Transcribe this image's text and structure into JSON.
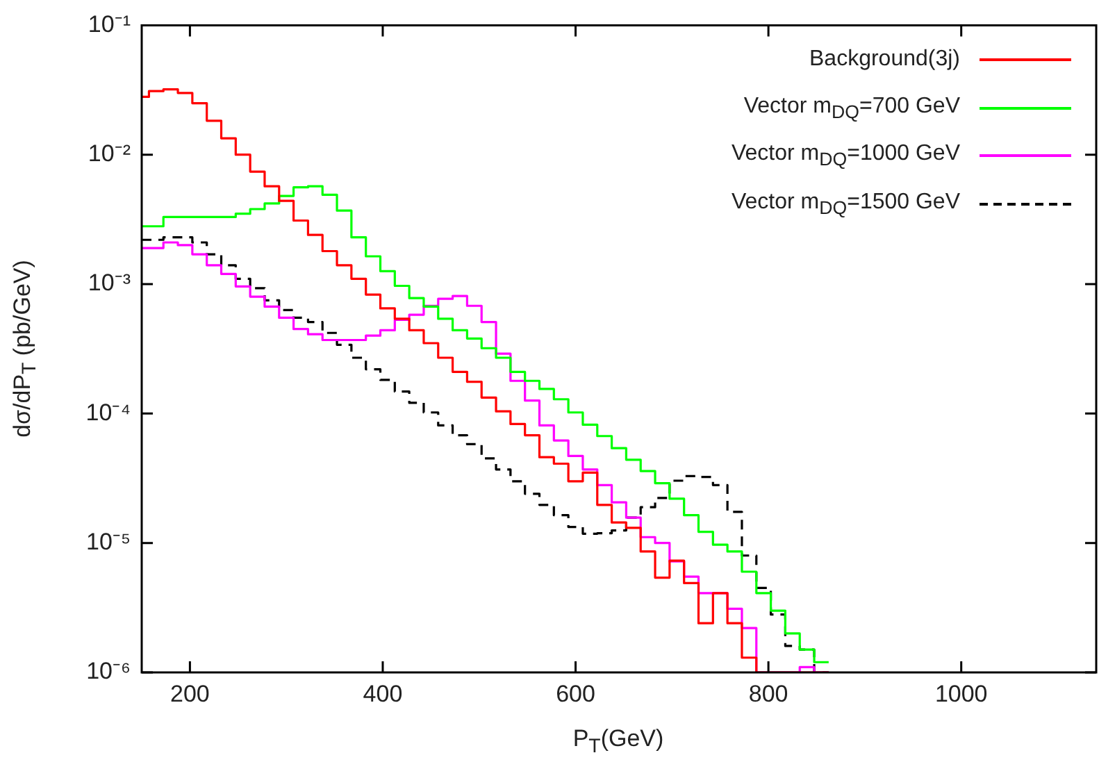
{
  "chart_data": {
    "type": "histogram",
    "xlabel": "P$_{T}$(GeV)",
    "ylabel": "dσ/dP$_{T}$ (pb/GeV)",
    "bins": [
      150,
      157.5,
      172.5,
      187.5,
      202.5,
      217.5,
      232.5,
      247.5,
      262.5,
      277.5,
      292.5,
      307.5,
      322.5,
      337.5,
      352.5,
      367.5,
      382.5,
      397.5,
      412.5,
      427.5,
      442.5,
      457.5,
      472.5,
      487.5,
      502.5,
      517.5,
      532.5,
      547.5,
      562.5,
      577.5,
      592.5,
      607.5,
      622.5,
      637.5,
      652.5,
      667.5,
      682.5,
      697.5,
      712.5,
      727.5,
      742.5,
      757.5,
      772.5,
      787.5,
      802.5,
      817.5,
      832.5,
      847.5,
      862.5
    ],
    "series": [
      {
        "name": "Background(3j)",
        "color": "#ff0000",
        "values": [
          0.028,
          0.031,
          0.032,
          0.03,
          0.025,
          0.0183,
          0.0134,
          0.01,
          0.0074,
          0.0057,
          0.0044,
          0.0031,
          0.0024,
          0.0018,
          0.0014,
          0.0011,
          0.00083,
          0.00065,
          0.00054,
          0.00044,
          0.00035,
          0.00027,
          0.00021,
          0.000176,
          0.000133,
          0.000104,
          8.3e-05,
          6.8e-05,
          4.6e-05,
          4.1e-05,
          3e-05,
          3.5e-05,
          1.97e-05,
          1.44e-05,
          1.31e-05,
          8.6e-06,
          5.4e-06,
          7.3e-06,
          4.9e-06,
          2.4e-06,
          4.1e-06,
          2.4e-06,
          1.3e-06,
          null,
          null,
          null,
          null,
          null
        ]
      },
      {
        "name": "Vector m$_{DQ}$=700 GeV",
        "color": "#00ff00",
        "values": [
          0.0028,
          0.0028,
          0.0033,
          0.0033,
          0.0033,
          0.0033,
          0.0033,
          0.0035,
          0.0038,
          0.0042,
          0.0048,
          0.0056,
          0.0057,
          0.0049,
          0.0037,
          0.0023,
          0.00164,
          0.00126,
          0.00097,
          0.00078,
          0.00067,
          0.00054,
          0.00044,
          0.00038,
          0.00032,
          0.00027,
          0.00021,
          0.000179,
          0.000155,
          0.000129,
          0.000102,
          8.2e-05,
          6.7e-05,
          5.4e-05,
          4.4e-05,
          3.6e-05,
          2.9e-05,
          2.2e-05,
          1.64e-05,
          1.22e-05,
          9.7e-06,
          8.6e-06,
          6e-06,
          4.1e-06,
          3e-06,
          2e-06,
          1.5e-06,
          1.2e-06
        ]
      },
      {
        "name": "Vector m$_{DQ}$=1000 GeV",
        "color": "#ff00ff",
        "values": [
          0.0019,
          0.0019,
          0.0021,
          0.002,
          0.0017,
          0.0014,
          0.0012,
          0.00096,
          0.0008,
          0.00067,
          0.00055,
          0.00045,
          0.00041,
          0.00037,
          0.00037,
          0.00037,
          0.0004,
          0.00044,
          0.00053,
          0.00058,
          0.00068,
          0.00077,
          0.00081,
          0.00068,
          0.00051,
          0.00029,
          0.000179,
          0.000126,
          8.1e-05,
          6.2e-05,
          4.7e-05,
          3.7e-05,
          2.8e-05,
          2.06e-05,
          1.57e-05,
          1.11e-05,
          1e-05,
          7.2e-06,
          5.5e-06,
          4.1e-06,
          4.1e-06,
          3.1e-06,
          2.2e-06,
          null,
          null,
          null,
          1.1e-06,
          null
        ]
      },
      {
        "name": "Vector m$_{DQ}$=1500 GeV",
        "color": "#000000",
        "line_style": "dashed",
        "values": [
          0.0022,
          0.0022,
          0.0023,
          0.0023,
          0.0021,
          0.0017,
          0.0014,
          0.0011,
          0.00093,
          0.00075,
          0.00063,
          0.00055,
          0.00051,
          0.00042,
          0.00034,
          0.00027,
          0.00022,
          0.000182,
          0.000148,
          0.000121,
          0.000102,
          8.1e-05,
          6.8e-05,
          5.8e-05,
          4.5e-05,
          3.7e-05,
          3e-05,
          2.4e-05,
          1.97e-05,
          1.64e-05,
          1.33e-05,
          1.18e-05,
          1.19e-05,
          1.25e-05,
          1.57e-05,
          1.89e-05,
          2.23e-05,
          3.03e-05,
          3.29e-05,
          3.24e-05,
          2.8e-05,
          1.74e-05,
          8e-06,
          4.5e-06,
          2.8e-06,
          1.6e-06,
          1.5e-06,
          null
        ]
      }
    ],
    "xlim": [
      150,
      1140
    ],
    "xticks": [
      200,
      400,
      600,
      800,
      1000
    ],
    "ylim": [
      1e-06,
      0.1
    ],
    "log": true,
    "yticks": [
      {
        "value": 0.1,
        "label": "10⁻¹"
      },
      {
        "value": 0.01,
        "label": "10⁻²"
      },
      {
        "value": 0.001,
        "label": "10⁻³"
      },
      {
        "value": 0.0001,
        "label": "10⁻⁴"
      },
      {
        "value": 1e-05,
        "label": "10⁻⁵"
      },
      {
        "value": 1e-06,
        "label": "10⁻⁶"
      }
    ],
    "legend": "top right",
    "marker": "none"
  }
}
